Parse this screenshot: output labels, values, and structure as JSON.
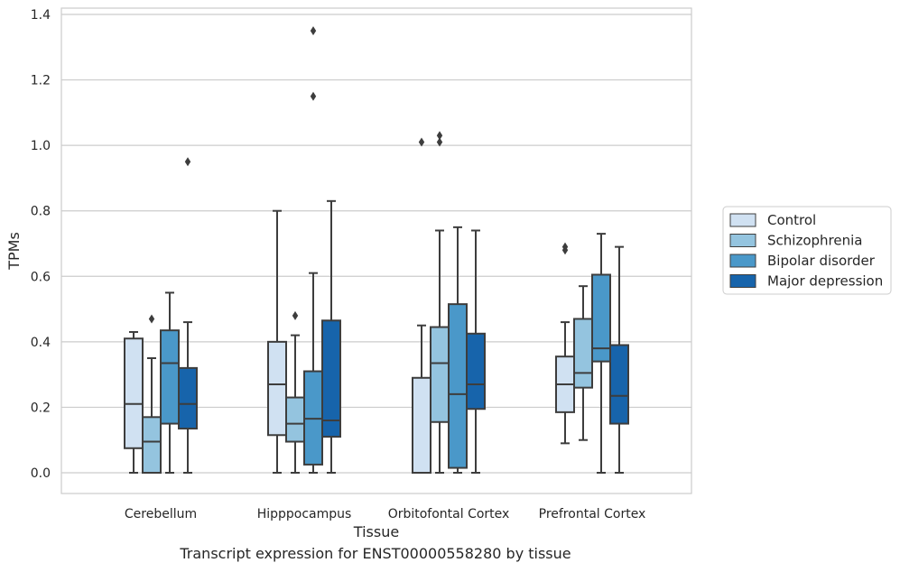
{
  "caption": "Transcript expression for ENST00000558280 by tissue",
  "chart_data": {
    "type": "box",
    "xlabel": "Tissue",
    "ylabel": "TPMs",
    "ylim": [
      -0.065,
      1.42
    ],
    "yticks": [
      0.0,
      0.2,
      0.4,
      0.6,
      0.8,
      1.0,
      1.2,
      1.4
    ],
    "ytick_labels": [
      "0.0",
      "0.2",
      "0.4",
      "0.6",
      "0.8",
      "1.0",
      "1.2",
      "1.4"
    ],
    "grid": true,
    "legend_position": "right",
    "categories": [
      "Cerebellum",
      "Hipppocampus",
      "Orbitofontal Cortex",
      "Prefrontal Cortex"
    ],
    "series": [
      {
        "name": "Control",
        "color": "#d0e1f2",
        "boxes": [
          {
            "whislo": 0.0,
            "q1": 0.075,
            "med": 0.21,
            "q3": 0.41,
            "whishi": 0.43,
            "fliers": []
          },
          {
            "whislo": 0.0,
            "q1": 0.115,
            "med": 0.27,
            "q3": 0.4,
            "whishi": 0.8,
            "fliers": []
          },
          {
            "whislo": 0.0,
            "q1": 0.0,
            "med": 0.0,
            "q3": 0.29,
            "whishi": 0.45,
            "fliers": [
              1.01
            ]
          },
          {
            "whislo": 0.09,
            "q1": 0.185,
            "med": 0.27,
            "q3": 0.355,
            "whishi": 0.46,
            "fliers": [
              0.68,
              0.69
            ]
          }
        ]
      },
      {
        "name": "Schizophrenia",
        "color": "#94c4df",
        "boxes": [
          {
            "whislo": 0.0,
            "q1": 0.0,
            "med": 0.095,
            "q3": 0.17,
            "whishi": 0.35,
            "fliers": [
              0.47
            ]
          },
          {
            "whislo": 0.0,
            "q1": 0.095,
            "med": 0.15,
            "q3": 0.23,
            "whishi": 0.42,
            "fliers": [
              0.48
            ]
          },
          {
            "whislo": 0.0,
            "q1": 0.155,
            "med": 0.335,
            "q3": 0.445,
            "whishi": 0.74,
            "fliers": [
              1.01,
              1.03
            ]
          },
          {
            "whislo": 0.1,
            "q1": 0.26,
            "med": 0.305,
            "q3": 0.47,
            "whishi": 0.57,
            "fliers": []
          }
        ]
      },
      {
        "name": "Bipolar disorder",
        "color": "#4a98c9",
        "boxes": [
          {
            "whislo": 0.0,
            "q1": 0.15,
            "med": 0.335,
            "q3": 0.435,
            "whishi": 0.55,
            "fliers": []
          },
          {
            "whislo": 0.0,
            "q1": 0.025,
            "med": 0.165,
            "q3": 0.31,
            "whishi": 0.61,
            "fliers": [
              1.15,
              1.35
            ]
          },
          {
            "whislo": 0.0,
            "q1": 0.015,
            "med": 0.24,
            "q3": 0.515,
            "whishi": 0.75,
            "fliers": []
          },
          {
            "whislo": 0.0,
            "q1": 0.34,
            "med": 0.38,
            "q3": 0.605,
            "whishi": 0.73,
            "fliers": []
          }
        ]
      },
      {
        "name": "Major depression",
        "color": "#1764ab",
        "boxes": [
          {
            "whislo": 0.0,
            "q1": 0.135,
            "med": 0.21,
            "q3": 0.32,
            "whishi": 0.46,
            "fliers": [
              0.95
            ]
          },
          {
            "whislo": 0.0,
            "q1": 0.11,
            "med": 0.16,
            "q3": 0.465,
            "whishi": 0.83,
            "fliers": []
          },
          {
            "whislo": 0.0,
            "q1": 0.195,
            "med": 0.27,
            "q3": 0.425,
            "whishi": 0.74,
            "fliers": []
          },
          {
            "whislo": 0.0,
            "q1": 0.15,
            "med": 0.235,
            "q3": 0.39,
            "whishi": 0.69,
            "fliers": []
          }
        ]
      }
    ]
  }
}
